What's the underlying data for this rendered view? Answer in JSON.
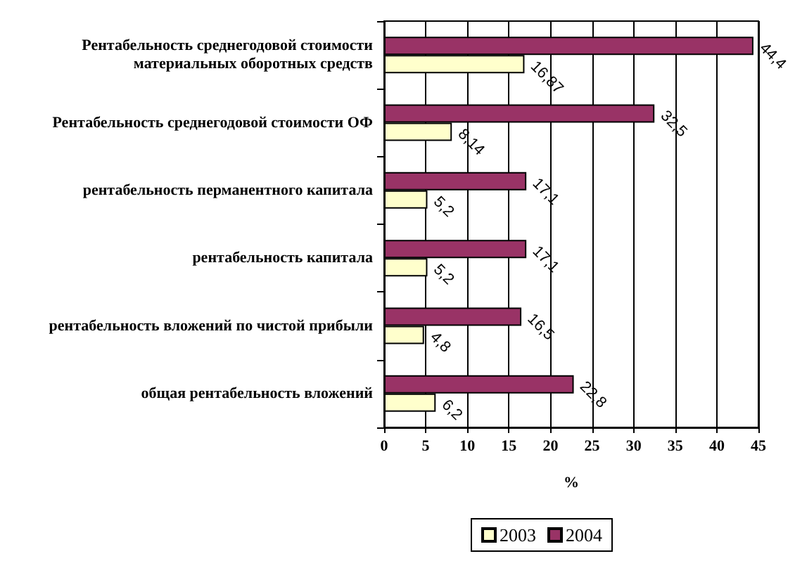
{
  "chart_data": {
    "type": "bar",
    "orientation": "horizontal",
    "categories": [
      "Рентабельность среднегодовой стоимости материальных оборотных средств",
      "Рентабельность среднегодовой стоимости ОФ",
      "рентабельность перманентного капитала",
      "рентабельность капитала",
      "рентабельность вложений по чистой прибыли",
      "общая рентабельность вложений"
    ],
    "series": [
      {
        "name": "2003",
        "color": "#ffffcc",
        "values": [
          16.87,
          8.14,
          5.2,
          5.2,
          4.8,
          6.2
        ],
        "value_labels": [
          "16,87",
          "8,14",
          "5,2",
          "5,2",
          "4,8",
          "6,2"
        ]
      },
      {
        "name": "2004",
        "color": "#993366",
        "values": [
          44.4,
          32.5,
          17.1,
          17.1,
          16.5,
          22.8
        ],
        "value_labels": [
          "44,4",
          "32,5",
          "17,1",
          "17,1",
          "16,5",
          "22,8"
        ]
      }
    ],
    "xlabel": "%",
    "xlim": [
      0,
      45
    ],
    "xticks": [
      0,
      5,
      10,
      15,
      20,
      25,
      30,
      35,
      40,
      45
    ],
    "grid": "x",
    "legend": "bottom"
  }
}
